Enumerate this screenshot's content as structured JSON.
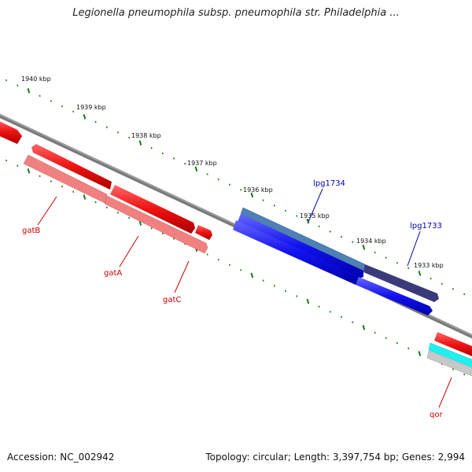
{
  "title": "Legionella pneumophila subsp. pneumophila str. Philadelphia ...",
  "accession_text": "Accession: NC_002942",
  "summary_text": "Topology: circular; Length: 3,397,754 bp; Genes: 2,994",
  "kbp_ticks": [
    "1940 kbp",
    "1939 kbp",
    "1938 kbp",
    "1937 kbp",
    "1936 kbp",
    "1935 kbp",
    "1934 kbp",
    "1933 kbp"
  ],
  "genes": [
    {
      "name": "gatB",
      "color": "#cc0000"
    },
    {
      "name": "gatA",
      "color": "#cc0000"
    },
    {
      "name": "gatC",
      "color": "#cc0000"
    },
    {
      "name": "lpg1734",
      "color": "#0000aa"
    },
    {
      "name": "lpg1733",
      "color": "#0000aa"
    },
    {
      "name": "qor",
      "color": "#cc0000"
    }
  ],
  "colors": {
    "backbone": "#808080",
    "tick": "#1a7a1a",
    "red_gene": "#ee1111",
    "pink_gene": "#f08080",
    "blue_gene": "#1111ee",
    "steel_gene": "#4f7fb5",
    "navy_gene": "#3a3a7a",
    "cyan_gene": "#22eeee",
    "gray_gene": "#c8c8c8"
  }
}
